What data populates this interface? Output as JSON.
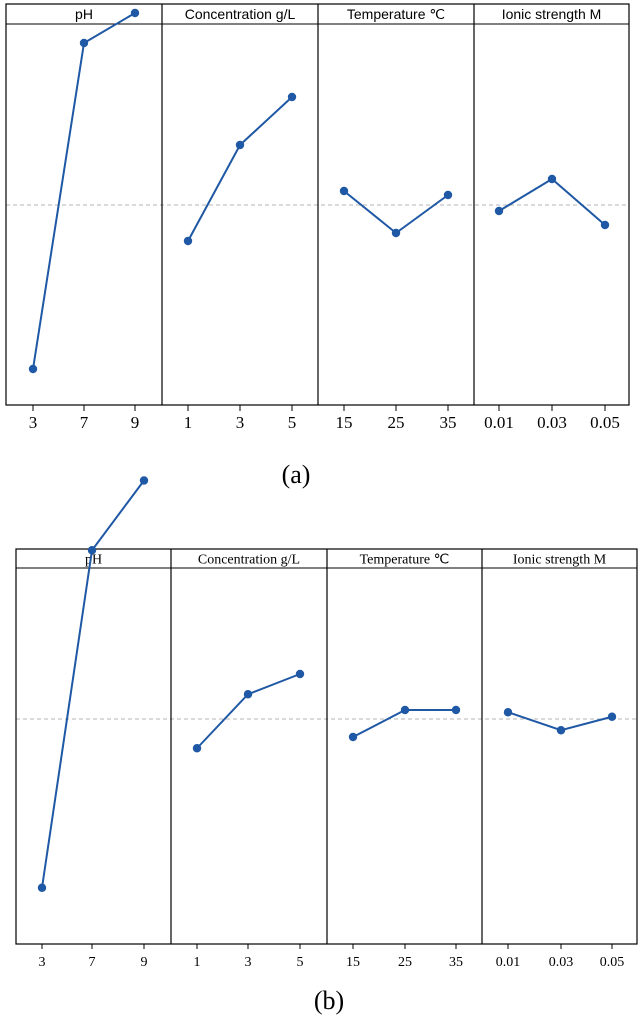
{
  "chart_data": [
    {
      "type": "line",
      "caption": "(a)",
      "reference_line_y": 0.5,
      "ylim": [
        0,
        1
      ],
      "panels": [
        {
          "title": "pH",
          "categories": [
            "3",
            "7",
            "9"
          ],
          "values": [
            0.09,
            0.905,
            0.98
          ]
        },
        {
          "title": "Concentration g/L",
          "categories": [
            "1",
            "3",
            "5"
          ],
          "values": [
            0.41,
            0.65,
            0.77
          ]
        },
        {
          "title": "Temperature ℃",
          "categories": [
            "15",
            "25",
            "35"
          ],
          "values": [
            0.535,
            0.43,
            0.525
          ]
        },
        {
          "title": "Ionic strength M",
          "categories": [
            "0.01",
            "0.03",
            "0.05"
          ],
          "values": [
            0.485,
            0.565,
            0.45
          ]
        }
      ],
      "line_color": "#1f58a4",
      "reference_color": "#b5b5b5"
    },
    {
      "type": "line",
      "caption": "(b)",
      "reference_line_y": 0.5,
      "ylim": [
        0,
        1
      ],
      "panels": [
        {
          "title": "pH",
          "categories": [
            "3",
            "7",
            "9"
          ],
          "values": [
            0.125,
            0.875,
            1.03
          ]
        },
        {
          "title": "Concentration g/L",
          "categories": [
            "1",
            "3",
            "5"
          ],
          "values": [
            0.435,
            0.555,
            0.6
          ]
        },
        {
          "title": "Temperature ℃",
          "categories": [
            "15",
            "25",
            "35"
          ],
          "values": [
            0.46,
            0.52,
            0.52
          ]
        },
        {
          "title": "Ionic strength M",
          "categories": [
            "0.01",
            "0.03",
            "0.05"
          ],
          "values": [
            0.515,
            0.475,
            0.505
          ]
        }
      ],
      "line_color": "#1f58a4",
      "reference_color": "#b5b5b5"
    }
  ]
}
